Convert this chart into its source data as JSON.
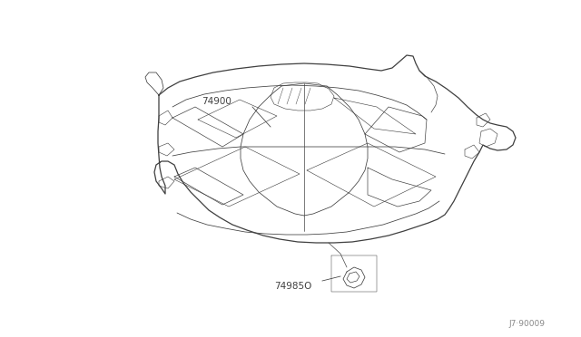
{
  "bg_color": "#ffffff",
  "line_color": "#404040",
  "lw": 0.7,
  "part_number_1": "74900",
  "part_number_2": "74985O",
  "ref_code": "J7·90009",
  "figsize": [
    6.4,
    3.72
  ],
  "dpi": 100
}
